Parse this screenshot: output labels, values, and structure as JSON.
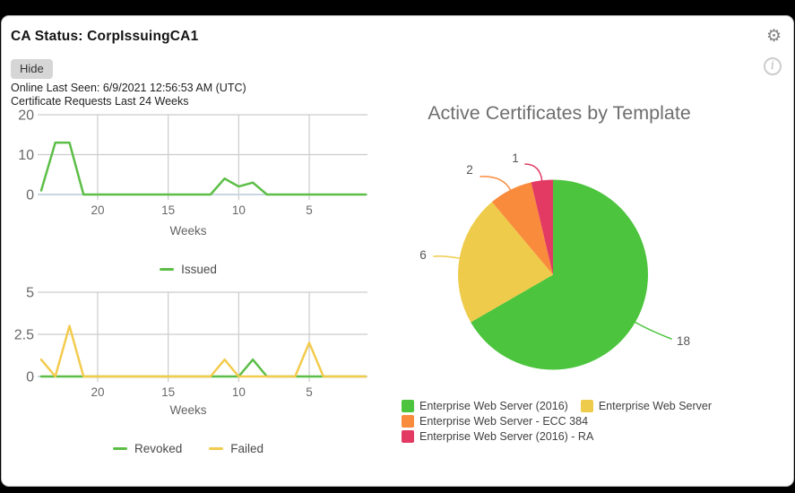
{
  "window": {
    "title": "CA Status: CorpIssuingCA1",
    "hide_button_label": "Hide",
    "online_last_seen": "Online Last Seen: 6/9/2021 12:56:53 AM (UTC)",
    "icons": {
      "settings": "⚙",
      "info": "i"
    }
  },
  "chart_data": [
    {
      "type": "line",
      "title": "Certificate Requests Last 24 Weeks",
      "xlabel": "Weeks",
      "x": [
        24,
        23,
        22,
        21,
        20,
        19,
        18,
        17,
        16,
        15,
        14,
        13,
        12,
        11,
        10,
        9,
        8,
        7,
        6,
        5,
        4,
        3,
        2,
        1
      ],
      "x_ticks": [
        20,
        15,
        10,
        5
      ],
      "ylim": [
        0,
        20
      ],
      "y_ticks": [
        0,
        10,
        20
      ],
      "grid": true,
      "legend_position": "bottom",
      "series": [
        {
          "name": "Issued",
          "color": "#5cbe47",
          "values": [
            1,
            13,
            13,
            0,
            0,
            0,
            0,
            0,
            0,
            0,
            0,
            0,
            0,
            4,
            2,
            3,
            0,
            0,
            0,
            0,
            0,
            0,
            0,
            0
          ]
        }
      ]
    },
    {
      "type": "line",
      "title": "",
      "xlabel": "Weeks",
      "x": [
        24,
        23,
        22,
        21,
        20,
        19,
        18,
        17,
        16,
        15,
        14,
        13,
        12,
        11,
        10,
        9,
        8,
        7,
        6,
        5,
        4,
        3,
        2,
        1
      ],
      "x_ticks": [
        20,
        15,
        10,
        5
      ],
      "ylim": [
        0,
        5
      ],
      "y_ticks": [
        0,
        2.5,
        5
      ],
      "grid": true,
      "legend_position": "bottom",
      "series": [
        {
          "name": "Revoked",
          "color": "#5cbe47",
          "values": [
            0,
            0,
            0,
            0,
            0,
            0,
            0,
            0,
            0,
            0,
            0,
            0,
            0,
            0,
            0,
            1,
            0,
            0,
            0,
            0,
            0,
            0,
            0,
            0
          ]
        },
        {
          "name": "Failed",
          "color": "#f3cb4e",
          "values": [
            1,
            0,
            3,
            0,
            0,
            0,
            0,
            0,
            0,
            0,
            0,
            0,
            0,
            1,
            0,
            0,
            0,
            0,
            0,
            2,
            0,
            0,
            0,
            0
          ]
        }
      ]
    },
    {
      "type": "pie",
      "title": "Active Certificates by Template",
      "legend_position": "bottom",
      "slices": [
        {
          "label": "Enterprise Web Server (2016)",
          "value": 18,
          "color": "#4cc43d"
        },
        {
          "label": "Enterprise Web Server",
          "value": 6,
          "color": "#efcb4b"
        },
        {
          "label": "Enterprise Web Server - ECC 384",
          "value": 2,
          "color": "#f98b3c"
        },
        {
          "label": "Enterprise Web Server (2016) - RA",
          "value": 1,
          "color": "#e23a63"
        }
      ]
    }
  ]
}
